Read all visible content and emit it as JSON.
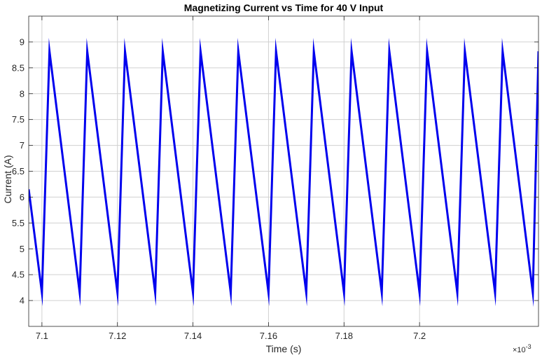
{
  "colors": {
    "series": "#0000ee",
    "grid": "#d0d0d0",
    "axis": "#262626",
    "background": "#ffffff"
  },
  "chart_data": {
    "type": "line",
    "title": "Magnetizing Current vs Time for 40 V Input",
    "xlabel": "Time (s)",
    "ylabel": "Current (A)",
    "x_exponent_label": "×10",
    "x_exponent_power": "-3",
    "x_scale": 0.001,
    "xlim": [
      7.0965,
      7.2315
    ],
    "ylim": [
      3.5,
      9.5
    ],
    "grid": true,
    "x_ticks": [
      7.1,
      7.12,
      7.14,
      7.16,
      7.18,
      7.2
    ],
    "x_tick_labels": [
      "7.1",
      "7.12",
      "7.14",
      "7.16",
      "7.18",
      "7.2"
    ],
    "y_ticks": [
      4,
      4.5,
      5,
      5.5,
      6,
      6.5,
      7,
      7.5,
      8,
      8.5,
      9
    ],
    "y_tick_labels": [
      "4",
      "4.5",
      "5",
      "5.5",
      "6",
      "6.5",
      "7",
      "7.5",
      "8",
      "8.5",
      "9"
    ],
    "series": [
      {
        "color": "#0000ee",
        "x": [
          7.0965,
          7.1,
          7.102,
          7.11,
          7.112,
          7.12,
          7.122,
          7.13,
          7.132,
          7.14,
          7.142,
          7.15,
          7.152,
          7.16,
          7.162,
          7.17,
          7.172,
          7.18,
          7.182,
          7.19,
          7.192,
          7.2,
          7.202,
          7.21,
          7.212,
          7.22,
          7.222,
          7.23,
          7.2315
        ],
        "y": [
          6.15,
          4.15,
          8.82,
          4.15,
          8.82,
          4.15,
          8.82,
          4.15,
          8.82,
          4.15,
          8.82,
          4.15,
          8.82,
          4.15,
          8.82,
          4.15,
          8.82,
          4.15,
          8.82,
          4.15,
          8.82,
          4.15,
          8.82,
          4.15,
          8.82,
          4.15,
          8.82,
          4.15,
          8.82
        ]
      }
    ]
  }
}
